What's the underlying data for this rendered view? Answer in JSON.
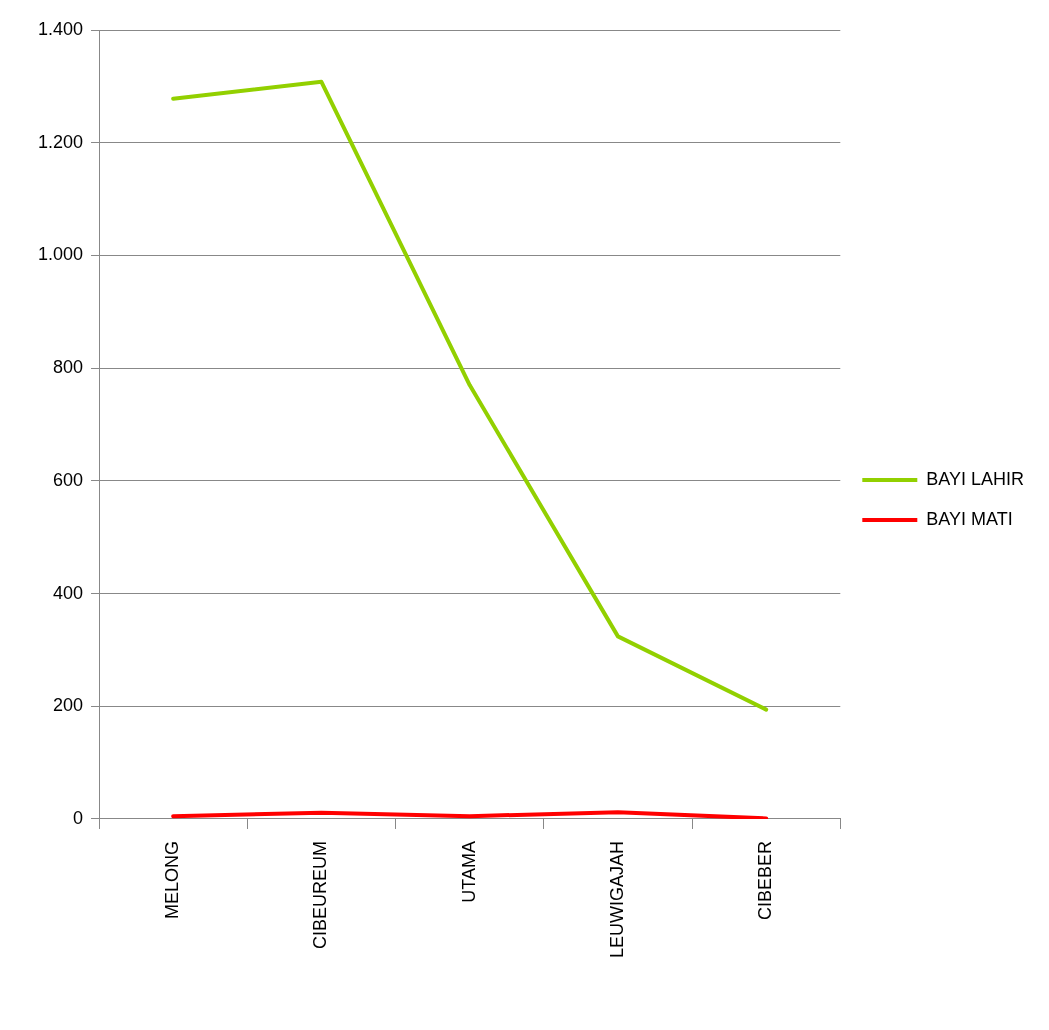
{
  "chart_data": {
    "type": "line",
    "categories": [
      "MELONG",
      "CIBEUREUM",
      "UTAMA",
      "LEUWIGAJAH",
      "CIBEBER"
    ],
    "series": [
      {
        "name": "BAYI LAHIR",
        "color": "#92d000",
        "values": [
          1278,
          1308,
          770,
          324,
          194
        ]
      },
      {
        "name": "BAYI MATI",
        "color": "#ff0000",
        "values": [
          5,
          11,
          5,
          12,
          1
        ]
      }
    ],
    "ylim": [
      0,
      1400
    ],
    "yticks": [
      {
        "value": 0,
        "label": "0"
      },
      {
        "value": 200,
        "label": "200"
      },
      {
        "value": 400,
        "label": "400"
      },
      {
        "value": 600,
        "label": "600"
      },
      {
        "value": 800,
        "label": "800"
      },
      {
        "value": 1000,
        "label": "1.000"
      },
      {
        "value": 1200,
        "label": "1.200"
      },
      {
        "value": 1400,
        "label": "1.400"
      }
    ],
    "grid": "y",
    "legend": "right",
    "marker": "none",
    "line_style": "solid"
  }
}
